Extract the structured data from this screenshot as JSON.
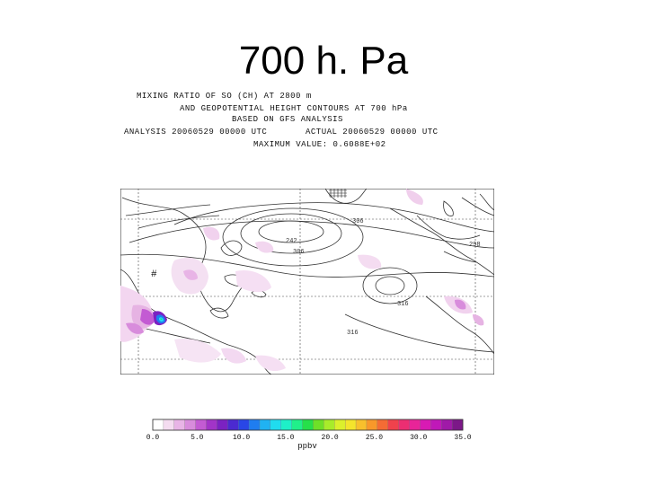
{
  "title": "700 h. Pa",
  "plot_header": {
    "line1": "MIXING RATIO OF SO (CH) AT 2800 m",
    "line2": "AND GEOPOTENTIAL HEIGHT CONTOURS AT 700 hPa",
    "line3": "BASED ON GFS ANALYSIS",
    "line4_left": "ANALYSIS 20060529 00000 UTC",
    "line4_right": "ACTUAL 20060529 00000 UTC",
    "line5": "MAXIMUM VALUE: 0.6088E+02"
  },
  "map": {
    "contour_labels": [
      "242",
      "306",
      "306",
      "298",
      "316",
      "316"
    ]
  },
  "colorbar": {
    "tick_labels": [
      "0.0",
      "5.0",
      "10.0",
      "15.0",
      "20.0",
      "25.0",
      "30.0",
      "35.0"
    ],
    "units": "ppbv",
    "colors": [
      "#ffffff",
      "#f4dcf0",
      "#e8b4e6",
      "#d88cdc",
      "#c35bd3",
      "#a234c8",
      "#7b22c2",
      "#4b2ad0",
      "#2946e6",
      "#1f7df0",
      "#20b2f2",
      "#20dcef",
      "#1ef0c8",
      "#20f08a",
      "#26e04a",
      "#6ee028",
      "#a8ec2a",
      "#dcf02c",
      "#f4e42c",
      "#f8c02c",
      "#f8982a",
      "#f46c34",
      "#f0424c",
      "#ec2e72",
      "#e82498",
      "#d81ab4",
      "#c018b8",
      "#a01aa8",
      "#7c1888"
    ]
  }
}
